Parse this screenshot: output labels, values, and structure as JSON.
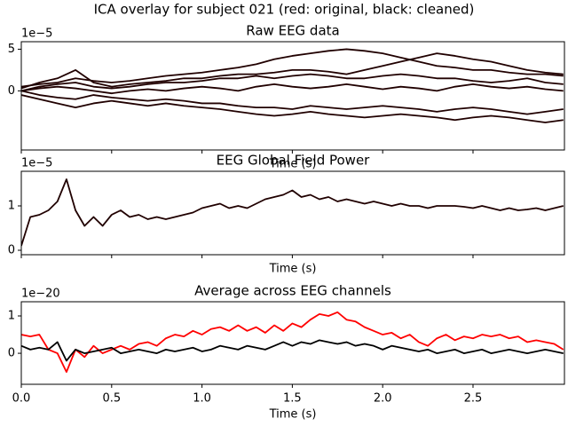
{
  "title": "ICA overlay for subject 021 (red: original, black: cleaned)",
  "chart_data": [
    {
      "type": "line",
      "title": "Raw EEG data",
      "x_label": "Time (s)",
      "y_offset_label": "1e−5",
      "x": [
        0.0,
        0.1,
        0.2,
        0.3,
        0.4,
        0.5,
        0.6,
        0.7,
        0.8,
        0.9,
        1.0,
        1.1,
        1.2,
        1.3,
        1.4,
        1.5,
        1.6,
        1.7,
        1.8,
        1.9,
        2.0,
        2.1,
        2.2,
        2.3,
        2.4,
        2.5,
        2.6,
        2.7,
        2.8,
        2.9,
        3.0
      ],
      "series": [
        {
          "color": "#200000",
          "values": [
            0.5,
            0.8,
            1.0,
            1.5,
            1.2,
            1.0,
            1.2,
            1.5,
            1.8,
            2.0,
            2.2,
            2.5,
            2.8,
            3.2,
            3.8,
            4.2,
            4.5,
            4.8,
            5.0,
            4.8,
            4.5,
            4.0,
            3.5,
            3.0,
            2.8,
            2.5,
            2.5,
            2.2,
            2.0,
            2.0,
            1.8
          ]
        },
        {
          "color": "#200000",
          "values": [
            0.3,
            1.0,
            1.5,
            2.5,
            1.0,
            0.5,
            0.8,
            1.0,
            1.2,
            1.5,
            1.5,
            1.8,
            2.0,
            2.0,
            2.2,
            2.5,
            2.5,
            2.3,
            2.0,
            2.5,
            3.0,
            3.5,
            4.0,
            4.5,
            4.2,
            3.8,
            3.5,
            3.0,
            2.5,
            2.2,
            2.0
          ]
        },
        {
          "color": "#200000",
          "values": [
            0.0,
            0.5,
            0.8,
            1.0,
            0.5,
            0.3,
            0.5,
            0.8,
            1.0,
            1.0,
            1.2,
            1.5,
            1.5,
            1.8,
            1.5,
            1.8,
            2.0,
            1.8,
            1.5,
            1.5,
            1.8,
            2.0,
            1.8,
            1.5,
            1.5,
            1.2,
            1.0,
            1.2,
            1.5,
            1.0,
            0.8
          ]
        },
        {
          "color": "#200000",
          "values": [
            0.0,
            -0.5,
            -0.8,
            -1.0,
            -0.5,
            -0.8,
            -1.0,
            -1.2,
            -1.0,
            -1.2,
            -1.5,
            -1.5,
            -1.8,
            -2.0,
            -2.0,
            -2.2,
            -1.8,
            -2.0,
            -2.2,
            -2.0,
            -1.8,
            -2.0,
            -2.2,
            -2.5,
            -2.2,
            -2.0,
            -2.2,
            -2.5,
            -2.8,
            -2.5,
            -2.2
          ]
        },
        {
          "color": "#200000",
          "values": [
            -0.5,
            -1.0,
            -1.5,
            -2.0,
            -1.5,
            -1.2,
            -1.5,
            -1.8,
            -1.5,
            -1.8,
            -2.0,
            -2.2,
            -2.5,
            -2.8,
            -3.0,
            -2.8,
            -2.5,
            -2.8,
            -3.0,
            -3.2,
            -3.0,
            -2.8,
            -3.0,
            -3.2,
            -3.5,
            -3.2,
            -3.0,
            -3.2,
            -3.5,
            -3.8,
            -3.5
          ]
        },
        {
          "color": "#200000",
          "values": [
            0.0,
            0.3,
            0.5,
            0.3,
            0.0,
            -0.3,
            0.0,
            0.2,
            0.0,
            0.3,
            0.5,
            0.3,
            0.0,
            0.5,
            0.8,
            0.5,
            0.3,
            0.5,
            0.8,
            0.5,
            0.2,
            0.5,
            0.3,
            0.0,
            0.5,
            0.8,
            0.5,
            0.3,
            0.5,
            0.2,
            0.0
          ]
        }
      ],
      "xlim": [
        0,
        3.006
      ],
      "ylim": [
        -7.1,
        5.9
      ],
      "yticks": [
        0,
        5
      ],
      "xticks": [
        0,
        0.5,
        1,
        1.5,
        2,
        2.5
      ],
      "xtick_labels": false
    },
    {
      "type": "line",
      "title": "EEG Global Field Power",
      "x_label": "Time (s)",
      "y_offset_label": "1e−5",
      "x": [
        0.0,
        0.05,
        0.1,
        0.15,
        0.2,
        0.25,
        0.3,
        0.35,
        0.4,
        0.45,
        0.5,
        0.55,
        0.6,
        0.65,
        0.7,
        0.75,
        0.8,
        0.85,
        0.9,
        0.95,
        1.0,
        1.05,
        1.1,
        1.15,
        1.2,
        1.25,
        1.3,
        1.35,
        1.4,
        1.45,
        1.5,
        1.55,
        1.6,
        1.65,
        1.7,
        1.75,
        1.8,
        1.85,
        1.9,
        1.95,
        2.0,
        2.05,
        2.1,
        2.15,
        2.2,
        2.25,
        2.3,
        2.35,
        2.4,
        2.45,
        2.5,
        2.55,
        2.6,
        2.65,
        2.7,
        2.75,
        2.8,
        2.85,
        2.9,
        2.95,
        3.0
      ],
      "series": [
        {
          "color": "#200000",
          "values": [
            0.1,
            0.75,
            0.8,
            0.9,
            1.1,
            1.6,
            0.9,
            0.55,
            0.75,
            0.55,
            0.8,
            0.9,
            0.75,
            0.8,
            0.7,
            0.75,
            0.7,
            0.75,
            0.8,
            0.85,
            0.95,
            1.0,
            1.05,
            0.95,
            1.0,
            0.95,
            1.05,
            1.15,
            1.2,
            1.25,
            1.35,
            1.2,
            1.25,
            1.15,
            1.2,
            1.1,
            1.15,
            1.1,
            1.05,
            1.1,
            1.05,
            1.0,
            1.05,
            1.0,
            1.0,
            0.95,
            1.0,
            1.0,
            1.0,
            0.98,
            0.95,
            1.0,
            0.95,
            0.9,
            0.95,
            0.9,
            0.92,
            0.95,
            0.9,
            0.95,
            1.0
          ]
        }
      ],
      "xlim": [
        0,
        3.006
      ],
      "ylim": [
        -0.1,
        1.78
      ],
      "yticks": [
        0,
        1
      ],
      "xticks": [
        0,
        0.5,
        1,
        1.5,
        2,
        2.5
      ],
      "xtick_labels": false
    },
    {
      "type": "line",
      "title": "Average across EEG channels",
      "x_label": "Time (s)",
      "y_offset_label": "1e−20",
      "x": [
        0.0,
        0.05,
        0.1,
        0.15,
        0.2,
        0.25,
        0.3,
        0.35,
        0.4,
        0.45,
        0.5,
        0.55,
        0.6,
        0.65,
        0.7,
        0.75,
        0.8,
        0.85,
        0.9,
        0.95,
        1.0,
        1.05,
        1.1,
        1.15,
        1.2,
        1.25,
        1.3,
        1.35,
        1.4,
        1.45,
        1.5,
        1.55,
        1.6,
        1.65,
        1.7,
        1.75,
        1.8,
        1.85,
        1.9,
        1.95,
        2.0,
        2.05,
        2.1,
        2.15,
        2.2,
        2.25,
        2.3,
        2.35,
        2.4,
        2.45,
        2.5,
        2.55,
        2.6,
        2.65,
        2.7,
        2.75,
        2.8,
        2.85,
        2.9,
        2.95,
        3.0
      ],
      "series": [
        {
          "color": "#ff0000",
          "values": [
            0.5,
            0.45,
            0.5,
            0.1,
            0.0,
            -0.5,
            0.1,
            -0.1,
            0.2,
            0.0,
            0.1,
            0.2,
            0.1,
            0.25,
            0.3,
            0.2,
            0.4,
            0.5,
            0.45,
            0.6,
            0.5,
            0.65,
            0.7,
            0.6,
            0.75,
            0.6,
            0.7,
            0.55,
            0.75,
            0.6,
            0.8,
            0.7,
            0.9,
            1.05,
            1.0,
            1.1,
            0.9,
            0.85,
            0.7,
            0.6,
            0.5,
            0.55,
            0.4,
            0.5,
            0.3,
            0.2,
            0.4,
            0.5,
            0.35,
            0.45,
            0.4,
            0.5,
            0.45,
            0.5,
            0.4,
            0.45,
            0.3,
            0.35,
            0.3,
            0.25,
            0.1
          ]
        },
        {
          "color": "#000000",
          "values": [
            0.2,
            0.1,
            0.15,
            0.1,
            0.3,
            -0.2,
            0.1,
            0.0,
            0.05,
            0.1,
            0.15,
            0.0,
            0.05,
            0.1,
            0.05,
            0.0,
            0.1,
            0.05,
            0.1,
            0.15,
            0.05,
            0.1,
            0.2,
            0.15,
            0.1,
            0.2,
            0.15,
            0.1,
            0.2,
            0.3,
            0.2,
            0.3,
            0.25,
            0.35,
            0.3,
            0.25,
            0.3,
            0.2,
            0.25,
            0.2,
            0.1,
            0.2,
            0.15,
            0.1,
            0.05,
            0.1,
            0.0,
            0.05,
            0.1,
            0.0,
            0.05,
            0.1,
            0.0,
            0.05,
            0.1,
            0.05,
            0.0,
            0.05,
            0.1,
            0.05,
            0.0
          ]
        }
      ],
      "xlim": [
        0,
        3.006
      ],
      "ylim": [
        -0.83,
        1.38
      ],
      "yticks": [
        0,
        1
      ],
      "xticks": [
        {
          "value": 0,
          "label": "0.0"
        },
        0.5,
        {
          "value": 1,
          "label": "1.0"
        },
        1.5,
        {
          "value": 2,
          "label": "2.0"
        },
        2.5
      ],
      "xtick_labels": true
    }
  ]
}
